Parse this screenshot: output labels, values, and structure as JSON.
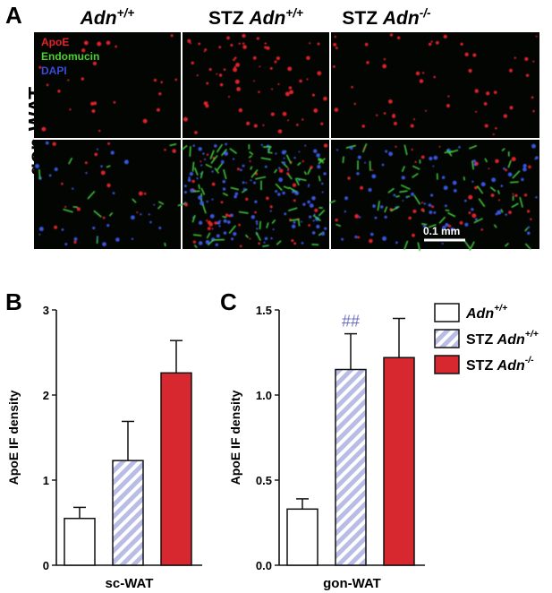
{
  "panel_a": {
    "letter": "A",
    "columns": [
      {
        "base": "Adn",
        "sup": "+/+",
        "prefix": ""
      },
      {
        "base": "Adn",
        "sup": "+/+",
        "prefix": "STZ "
      },
      {
        "base": "Adn",
        "sup": "-/-",
        "prefix": "STZ "
      }
    ],
    "row_label": "gon-WAT",
    "stains": [
      {
        "label": "ApoE",
        "color": "#e8202a"
      },
      {
        "label": "Endomucin",
        "color": "#4cd12c"
      },
      {
        "label": "DAPI",
        "color": "#3a4bd6"
      }
    ],
    "scale_bar": "0.1 mm"
  },
  "chart_data": [
    {
      "panel": "B",
      "type": "bar",
      "categories": [
        "Adn+/+",
        "STZ Adn+/+",
        "STZ Adn-/-"
      ],
      "values": [
        0.55,
        1.23,
        2.26
      ],
      "errors": [
        0.13,
        0.46,
        0.38
      ],
      "ylabel": "ApoE IF density",
      "xlabel": "sc-WAT",
      "ylim": [
        0,
        3
      ],
      "yticks": [
        "0",
        "1",
        "2",
        "3"
      ],
      "annotations": []
    },
    {
      "panel": "C",
      "type": "bar",
      "categories": [
        "Adn+/+",
        "STZ Adn+/+",
        "STZ Adn-/-"
      ],
      "values": [
        0.33,
        1.15,
        1.22
      ],
      "errors": [
        0.06,
        0.21,
        0.23
      ],
      "ylabel": "ApoE IF density",
      "xlabel": "gon-WAT",
      "ylim": [
        0,
        1.5
      ],
      "yticks": [
        "0.0",
        "0.5",
        "1.0",
        "1.5"
      ],
      "annotations": [
        {
          "text": "##",
          "bar": 1
        }
      ]
    }
  ],
  "legend": [
    {
      "base": "Adn",
      "sup": "+/+",
      "prefix": "",
      "style": "white"
    },
    {
      "base": "Adn",
      "sup": "+/+",
      "prefix": "STZ ",
      "style": "hatch"
    },
    {
      "base": "Adn",
      "sup": "-/-",
      "prefix": "STZ ",
      "style": "red"
    }
  ],
  "colors": {
    "red": "#d7282f",
    "hatch": "#b9bce4",
    "white": "#ffffff"
  }
}
